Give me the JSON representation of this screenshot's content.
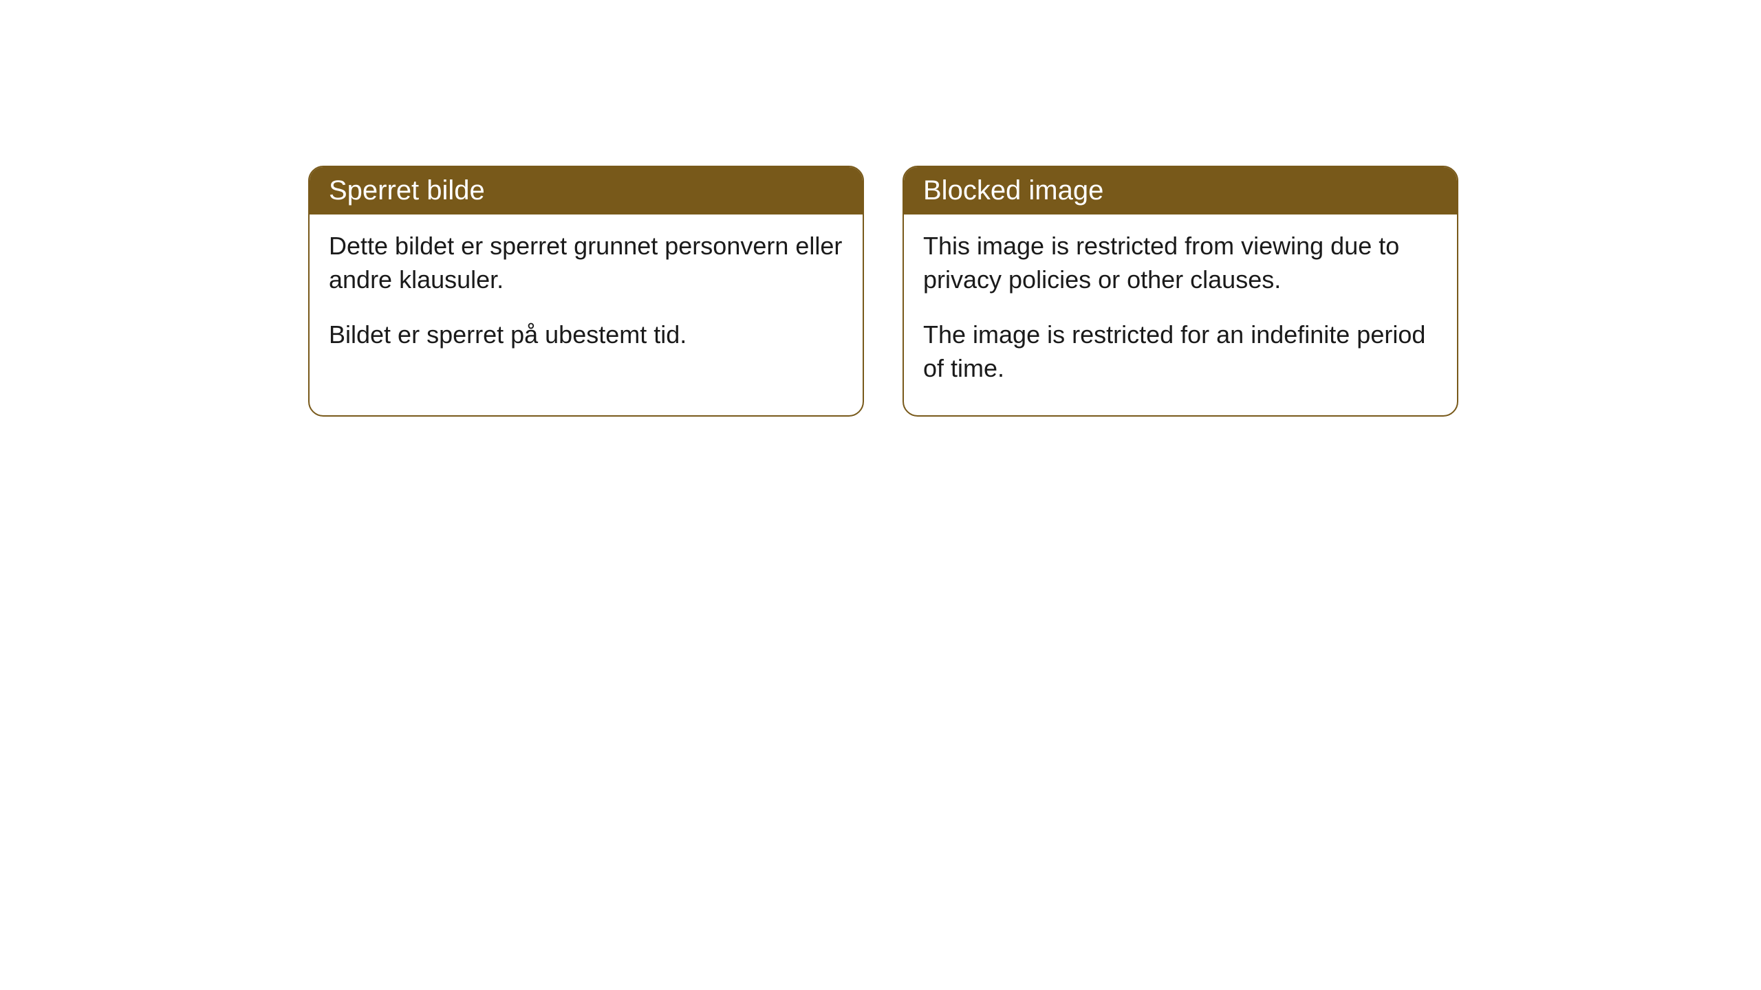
{
  "cards": [
    {
      "title": "Sperret bilde",
      "paragraph1": "Dette bildet er sperret grunnet personvern eller andre klausuler.",
      "paragraph2": "Bildet er sperret på ubestemt tid."
    },
    {
      "title": "Blocked image",
      "paragraph1": "This image is restricted from viewing due to privacy policies or other clauses.",
      "paragraph2": "The image is restricted for an indefinite period of time."
    }
  ],
  "styling": {
    "header_background": "#78591a",
    "header_text_color": "#ffffff",
    "border_color": "#78591a",
    "body_background": "#ffffff",
    "body_text_color": "#1a1a1a",
    "border_radius": 22,
    "title_fontsize": 40,
    "body_fontsize": 36
  }
}
